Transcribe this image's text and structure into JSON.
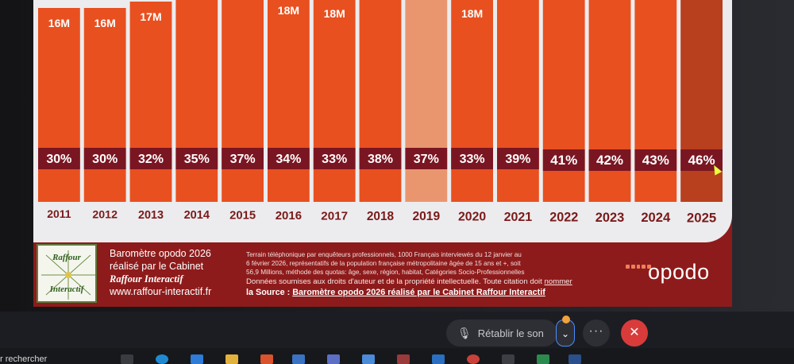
{
  "chart_data": {
    "type": "bar",
    "categories": [
      "2011",
      "2012",
      "2013",
      "2014",
      "2015",
      "2016",
      "2017",
      "2018",
      "2019",
      "2020",
      "2021",
      "2022",
      "2023",
      "2024",
      "2025"
    ],
    "top_labels": [
      "16M",
      "16M",
      "17M",
      "",
      "",
      "18M",
      "18M",
      "",
      "",
      "18M",
      "",
      "",
      "",
      "",
      ""
    ],
    "values": [
      30,
      30,
      32,
      35,
      37,
      34,
      33,
      38,
      37,
      33,
      39,
      41,
      42,
      43,
      46
    ],
    "value_labels": [
      "30%",
      "30%",
      "32%",
      "35%",
      "37%",
      "34%",
      "33%",
      "38%",
      "37%",
      "33%",
      "39%",
      "41%",
      "42%",
      "43%",
      "46%"
    ],
    "highlighted_category": "2019",
    "colors": {
      "bar": "#e85020",
      "bar_highlight": "#e9966f",
      "bar_last": "#b8401e",
      "value_band": "#7a1622",
      "background": "#ececee",
      "year_label": "#7a1a1a"
    }
  },
  "footer": {
    "logo": {
      "line1": "Raffour",
      "line2": "Interactif"
    },
    "credit": {
      "line1": "Baromètre opodo 2026",
      "line2": "réalisé par le Cabinet",
      "firm": "Raffour Interactif",
      "site": "www.raffour-interactif.fr"
    },
    "methodology": {
      "line1": "Terrain téléphonique par enquêteurs professionnels, 1000 Français interviewés du 12 janvier au",
      "line2": "6 février 2026, représentatifs de la population française métropolitaine âgée de 15 ans et +, soit",
      "line3": "56,9 Millions, méthode des quotas: âge, sexe, région, habitat, Catégories Socio-Professionnelles",
      "rights_a": "Données soumises aux droits d'auteur et de la propriété intellectuelle.",
      "rights_b": "Toute citation doit",
      "rights_c": "nommer",
      "source_a": "la Source :",
      "source_b": "Baromètre opodo 2026 réalisé par le Cabinet Raffour Interactif"
    },
    "brand": "opodo",
    "brand_color": "#f07e5a"
  },
  "call_toolbar": {
    "unmute_label": "Rétablir le son",
    "more_label": "···",
    "hangup_label": "✕"
  },
  "taskbar": {
    "search_text": "r rechercher"
  }
}
